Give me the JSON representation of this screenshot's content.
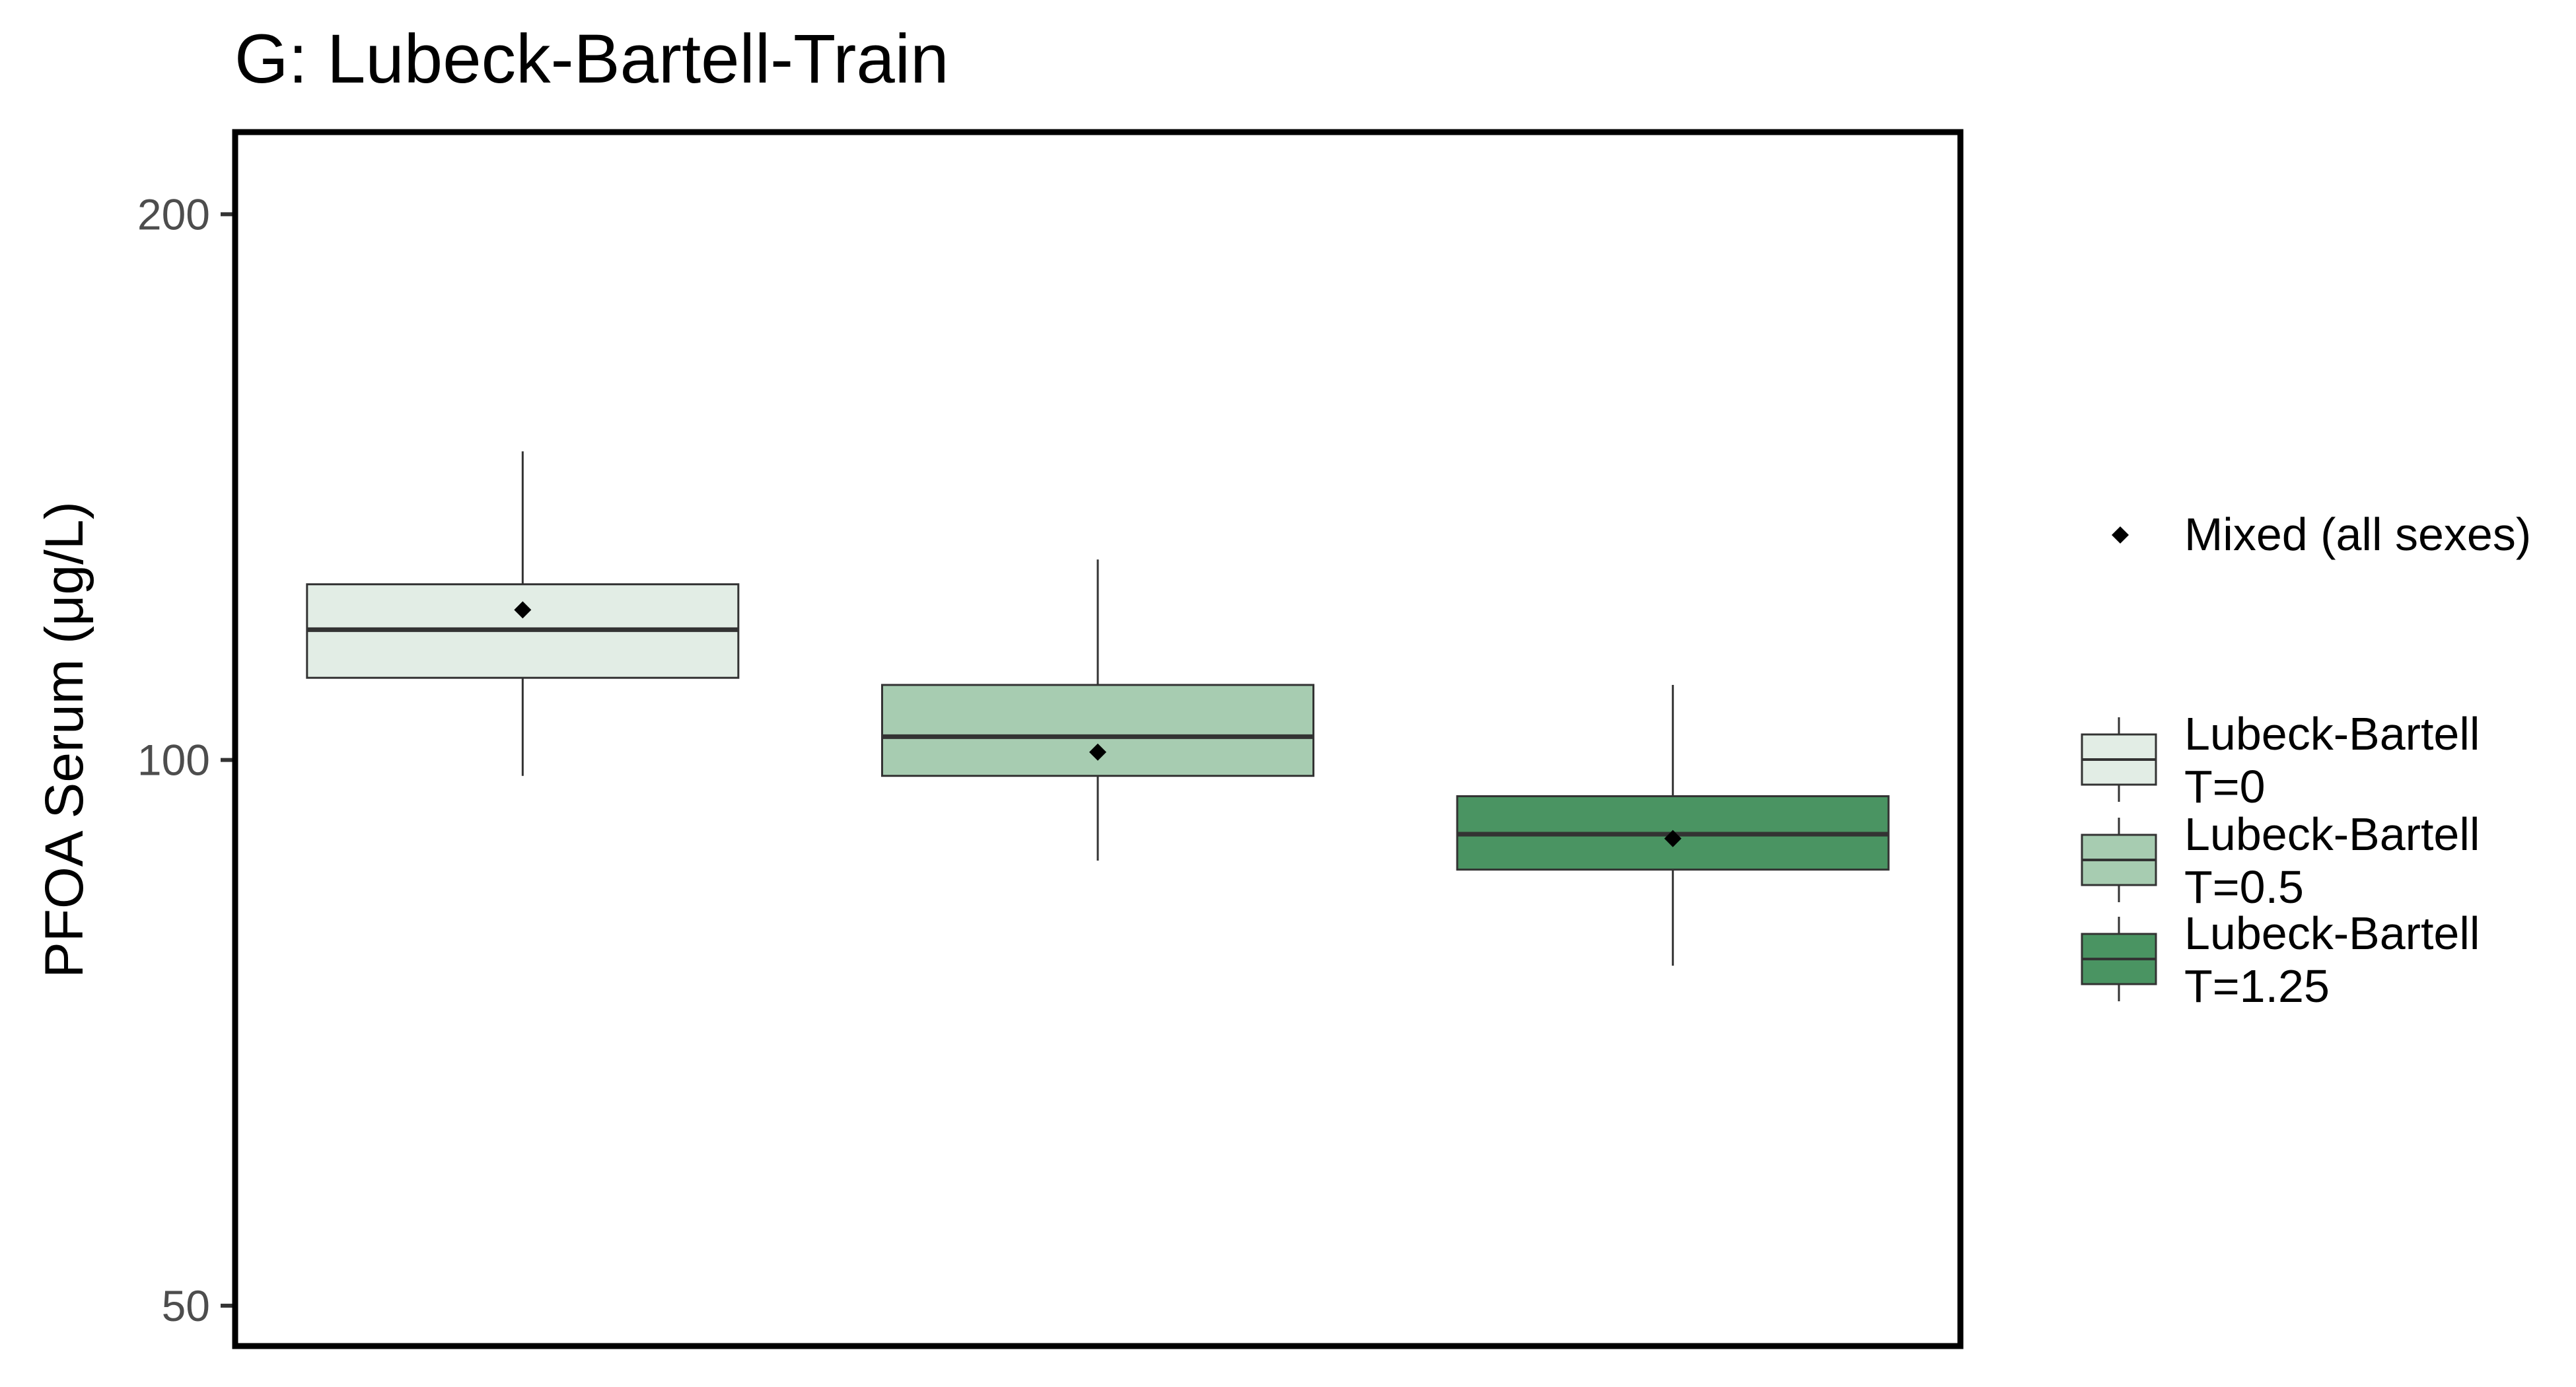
{
  "chart_data": {
    "type": "box",
    "title": "G: Lubeck-Bartell-Train",
    "xlabel": "",
    "ylabel": "PFOA Serum (μg/L)",
    "y_scale": "log",
    "ylim": [
      47.5,
      222
    ],
    "yticks": [
      50,
      100,
      200
    ],
    "ytick_labels": [
      "50",
      "100",
      "200"
    ],
    "grid": false,
    "legend_position": "right",
    "x_axis_labels_shown": false,
    "categories": [
      "Lubeck-Bartell T=0",
      "Lubeck-Bartell T=0.5",
      "Lubeck-Bartell T=1.25"
    ],
    "series": [
      {
        "name": "Lubeck-Bartell T=0",
        "legend_lines": [
          "Lubeck-Bartell",
          "T=0"
        ],
        "color": "#e2ede5",
        "whisker_low": 98,
        "q1": 111,
        "median": 118,
        "q3": 125,
        "whisker_high": 148,
        "mean": 121
      },
      {
        "name": "Lubeck-Bartell T=0.5",
        "legend_lines": [
          "Lubeck-Bartell",
          "T=0.5"
        ],
        "color": "#a7ccb1",
        "whisker_low": 88,
        "q1": 98,
        "median": 103,
        "q3": 110,
        "whisker_high": 129,
        "mean": 101
      },
      {
        "name": "Lubeck-Bartell T=1.25",
        "legend_lines": [
          "Lubeck-Bartell",
          "T=1.25"
        ],
        "color": "#4a9462",
        "whisker_low": 77,
        "q1": 87,
        "median": 91,
        "q3": 95.5,
        "whisker_high": 110,
        "mean": 90.5
      }
    ],
    "mean_marker_label": "Mixed (all sexes)",
    "mean_marker_color": "#000000",
    "outline_color": "#333333"
  }
}
